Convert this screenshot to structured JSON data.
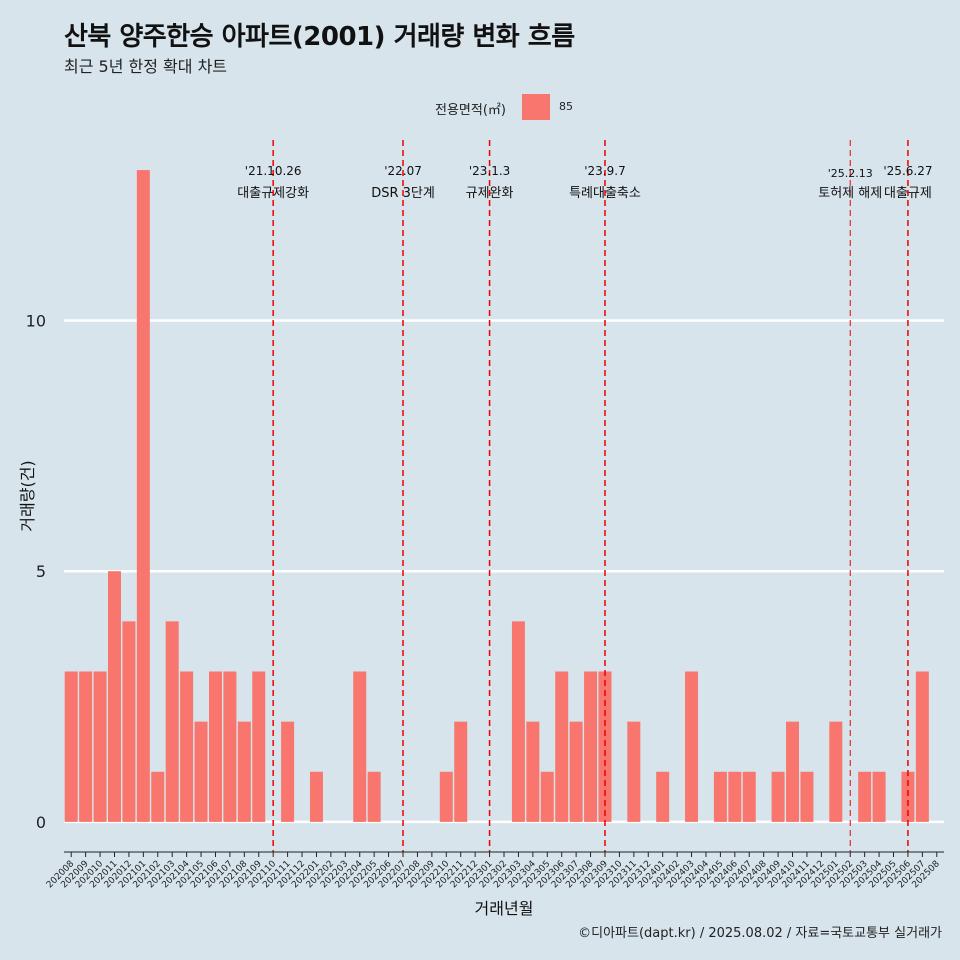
{
  "colors": {
    "background": "#d7e4ec",
    "bar": "#f8766d",
    "event_line": "#ee0000",
    "grid": "#ffffff"
  },
  "chart_data": {
    "type": "bar",
    "title": "산북 양주한승 아파트(2001) 거래량 변화 흐름",
    "subtitle": "최근 5년 한정 확대 차트",
    "xlabel": "거래년월",
    "ylabel": "거래량(건)",
    "legend": {
      "title": "전용면적(㎡)",
      "entries": [
        "85"
      ],
      "position": "top"
    },
    "ylim": [
      -0.6,
      13.6
    ],
    "yticks": [
      0,
      5,
      10
    ],
    "grid": true,
    "categories": [
      "202008",
      "202009",
      "202010",
      "202011",
      "202012",
      "202101",
      "202102",
      "202103",
      "202104",
      "202105",
      "202106",
      "202107",
      "202108",
      "202109",
      "202110",
      "202111",
      "202112",
      "202201",
      "202202",
      "202203",
      "202204",
      "202205",
      "202206",
      "202207",
      "202208",
      "202209",
      "202210",
      "202211",
      "202212",
      "202301",
      "202302",
      "202303",
      "202304",
      "202305",
      "202306",
      "202307",
      "202308",
      "202309",
      "202310",
      "202311",
      "202312",
      "202401",
      "202402",
      "202403",
      "202404",
      "202405",
      "202406",
      "202407",
      "202408",
      "202409",
      "202410",
      "202411",
      "202412",
      "202501",
      "202502",
      "202503",
      "202504",
      "202505",
      "202506",
      "202507",
      "202508"
    ],
    "series": [
      {
        "values": [
          3,
          3,
          3,
          5,
          4,
          13,
          1,
          4,
          3,
          2,
          3,
          3,
          2,
          3,
          0,
          2,
          0,
          1,
          0,
          0,
          3,
          1,
          0,
          0,
          0,
          0,
          1,
          2,
          0,
          0,
          0,
          4,
          2,
          1,
          3,
          2,
          3,
          3,
          0,
          2,
          0,
          1,
          0,
          3,
          0,
          1,
          1,
          1,
          0,
          1,
          2,
          1,
          0,
          2,
          0,
          1,
          1,
          0,
          1,
          3,
          0
        ]
      }
    ],
    "events": [
      {
        "date": "'21.10.26",
        "label": "대출규제강화",
        "position": "202110"
      },
      {
        "date": "'22.07",
        "label": "DSR 3단계",
        "position": "202207"
      },
      {
        "date": "'23.1.3",
        "label": "규제완화",
        "position": "202301"
      },
      {
        "date": "'23.9.7",
        "label": "특례대출축소",
        "position": "202309"
      },
      {
        "date": "'25.2.13",
        "label": "토허제 해제",
        "position": "202502"
      },
      {
        "date": "'25.6.27",
        "label": "대출규제",
        "position": "202506"
      }
    ]
  },
  "caption": "©디아파트(dapt.kr) / 2025.08.02 / 자료=국토교통부 실거래가"
}
